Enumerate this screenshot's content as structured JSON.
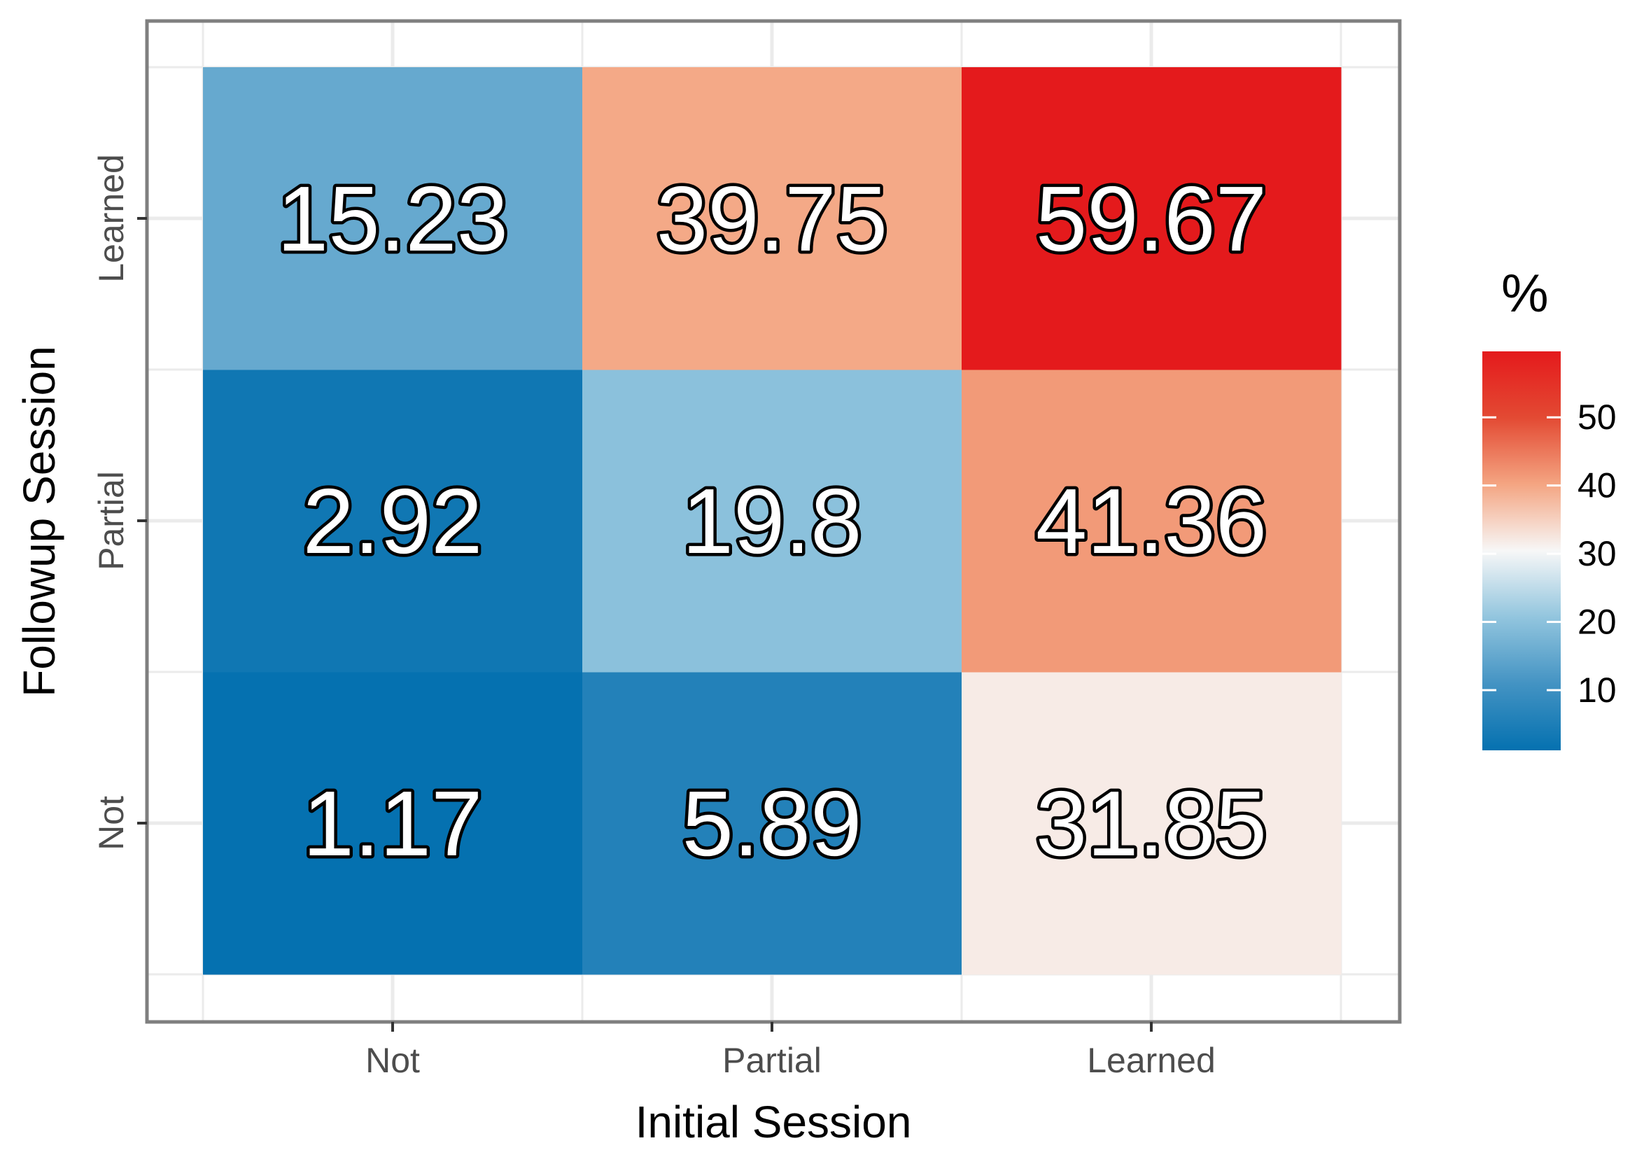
{
  "chart_data": {
    "type": "heatmap",
    "xlabel": "Initial Session",
    "ylabel": "Followup Session",
    "x_categories": [
      "Not",
      "Partial",
      "Learned"
    ],
    "y_categories": [
      "Not",
      "Partial",
      "Learned"
    ],
    "values": [
      [
        1.17,
        5.89,
        31.85
      ],
      [
        2.92,
        19.8,
        41.36
      ],
      [
        15.23,
        39.75,
        59.67
      ]
    ],
    "value_labels": [
      [
        "1.17",
        "5.89",
        "31.85"
      ],
      [
        "2.92",
        "19.8",
        "41.36"
      ],
      [
        "15.23",
        "39.75",
        "59.67"
      ]
    ],
    "legend": {
      "title": "%",
      "placement": "right",
      "range": [
        1.17,
        59.67
      ],
      "ticks": [
        10,
        20,
        30,
        40,
        50
      ],
      "tick_labels": [
        "10",
        "20",
        "30",
        "40",
        "50"
      ]
    },
    "colors": {
      "low": "#0868ac",
      "mid": "#f7f7f7",
      "high": "#ca0020",
      "scale_stops": [
        "#0571b0",
        "#4393c3",
        "#92c5de",
        "#f7f7f7",
        "#f4a582",
        "#e34a33",
        "#e41a1c"
      ],
      "panel_border": "#7f7f7f",
      "grid": "#ebebeb",
      "tick_text": "#4d4d4d"
    },
    "grid": true
  }
}
